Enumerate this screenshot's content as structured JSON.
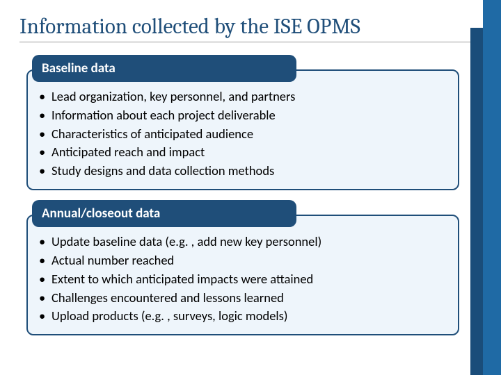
{
  "title": "Information collected by the ISE OPMS",
  "colors": {
    "title_color": "#1f4e79",
    "header_bg": "#1f4e79",
    "header_text": "#ffffff",
    "body_bg": "#eef5fb",
    "body_border": "#1f4e79",
    "bullet_text": "#000000",
    "right_bar": "#1f6aa5",
    "right_bar_inner": "#1a4d7a",
    "underline": "#9a9a9a"
  },
  "typography": {
    "title_font": "Cambria",
    "title_size_pt": 24,
    "body_font": "Calibri",
    "header_size_pt": 15,
    "bullet_size_pt": 14
  },
  "sections": [
    {
      "header": "Baseline data",
      "bullets": [
        "Lead organization, key personnel, and partners",
        "Information about each project deliverable",
        "Characteristics of anticipated audience",
        "Anticipated reach and impact",
        "Study designs and data collection methods"
      ]
    },
    {
      "header": "Annual/closeout data",
      "bullets": [
        "Update baseline data (e.g. , add new key personnel)",
        "Actual number reached",
        "Extent to which anticipated impacts were attained",
        "Challenges encountered and lessons learned",
        "Upload products (e.g. , surveys, logic models)"
      ]
    }
  ]
}
